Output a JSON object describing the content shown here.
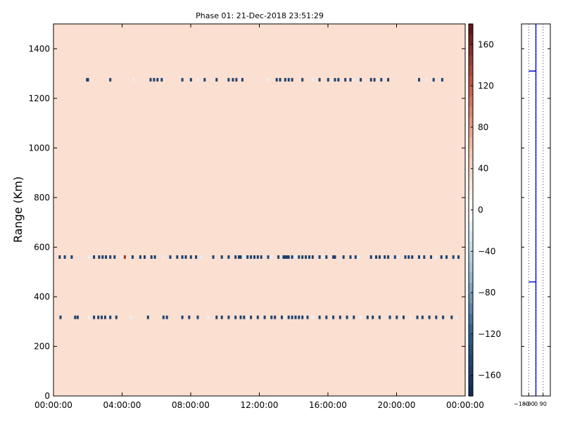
{
  "chart_data": [
    {
      "type": "heatmap",
      "title": "Phase 01: 21-Dec-2018 23:51:29",
      "xlabel": "",
      "ylabel": "Range (Km)",
      "xlim": [
        0,
        24
      ],
      "ylim": [
        0,
        1500
      ],
      "x_ticks": [
        0,
        4,
        8,
        12,
        16,
        20,
        24
      ],
      "x_tick_labels": [
        "00:00:00",
        "04:00:00",
        "08:00:00",
        "12:00:00",
        "16:00:00",
        "20:00:00",
        "00:00:00"
      ],
      "y_ticks": [
        0,
        200,
        400,
        600,
        800,
        1000,
        1200,
        1400
      ],
      "y_tick_labels": [
        "0",
        "200",
        "400",
        "600",
        "800",
        "1000",
        "1200",
        "1400"
      ],
      "background_value": 30,
      "bands": [
        {
          "range_km": 1275,
          "value": -150,
          "start_x_hours": [
            1.9,
            1.95,
            3.25,
            4.6,
            5.6,
            5.8,
            6.0,
            6.25,
            7.45,
            7.95,
            8.35,
            8.75,
            9.45,
            10.15,
            10.4,
            10.6,
            10.95,
            12.4,
            12.95,
            13.15,
            13.45,
            13.65,
            13.85,
            14.45,
            15.05,
            15.45,
            15.95,
            16.35,
            16.55,
            16.95,
            17.25,
            17.45,
            17.85,
            18.45,
            18.65,
            19.05,
            19.45,
            21.25,
            21.7,
            22.1,
            22.6
          ]
        },
        {
          "range_km": 560,
          "value": -150,
          "start_x_hours": [
            0.3,
            0.6,
            1.0,
            2.0,
            2.3,
            2.6,
            2.8,
            3.0,
            3.25,
            3.5,
            3.9,
            4.1,
            4.55,
            5.0,
            5.25,
            5.65,
            5.85,
            6.35,
            6.75,
            7.15,
            7.45,
            7.65,
            7.95,
            8.25,
            8.55,
            9.25,
            9.75,
            10.15,
            10.55,
            10.75,
            10.85,
            11.05,
            11.25,
            11.45,
            11.65,
            11.85,
            12.05,
            12.45,
            12.65,
            13.05,
            13.35,
            13.45,
            13.55,
            13.65,
            13.85,
            14.05,
            14.25,
            14.45,
            14.65,
            14.85,
            15.05,
            15.45,
            15.65,
            15.85,
            16.25,
            16.35,
            16.85,
            17.25,
            17.55,
            17.75,
            18.45,
            18.75,
            18.95,
            19.25,
            19.45,
            19.85,
            20.05,
            20.45,
            20.65,
            20.85,
            21.25,
            21.55,
            21.95,
            22.25,
            22.55,
            22.85,
            23.25,
            23.55
          ]
        },
        {
          "range_km": 317,
          "value": -150,
          "start_x_hours": [
            0.35,
            1.2,
            1.35,
            2.0,
            2.3,
            2.55,
            2.75,
            2.95,
            3.25,
            3.6,
            4.45,
            5.45,
            6.35,
            6.55,
            7.45,
            7.85,
            8.35,
            8.95,
            9.45,
            9.75,
            10.15,
            10.55,
            10.85,
            11.05,
            11.25,
            11.45,
            11.85,
            12.25,
            12.65,
            12.85,
            13.25,
            13.45,
            13.65,
            13.85,
            14.05,
            14.25,
            14.45,
            14.75,
            15.05,
            15.45,
            15.85,
            16.25,
            16.65,
            17.05,
            17.45,
            17.85,
            18.25,
            18.55,
            18.95,
            19.55,
            19.95,
            20.35,
            20.75,
            21.15,
            21.45,
            21.85,
            22.25,
            22.65,
            23.15,
            23.45
          ]
        }
      ],
      "highlight_cells": [
        {
          "x_hours": 4.1,
          "range_km": 560,
          "value": 140
        }
      ],
      "colorbar": {
        "vmin": -180,
        "vmax": 180,
        "ticks": [
          160,
          120,
          80,
          40,
          0,
          -40,
          -80,
          -120,
          -160
        ],
        "tick_labels": [
          "160",
          "120",
          "80",
          "40",
          "0",
          "−40",
          "−80",
          "−120",
          "−160"
        ],
        "stops": [
          {
            "value": -180,
            "color": "#0e2a52"
          },
          {
            "value": -120,
            "color": "#2b5c8d"
          },
          {
            "value": -60,
            "color": "#9cc3d9"
          },
          {
            "value": 0,
            "color": "#ffffff"
          },
          {
            "value": 60,
            "color": "#f5c3a9"
          },
          {
            "value": 120,
            "color": "#cc5a45"
          },
          {
            "value": 180,
            "color": "#5e0f14"
          }
        ]
      },
      "colors": {
        "background_cell": "#fbdfd1",
        "band_cell": "#2e5d90",
        "band_light_cell": "#e8f0f6"
      }
    },
    {
      "type": "line",
      "title": "",
      "xlabel": "",
      "ylabel": "",
      "xlim": [
        -180,
        180
      ],
      "ylim": [
        0,
        1500
      ],
      "x_ticks": [
        -180,
        -90,
        0,
        90
      ],
      "x_tick_labels": [
        "−180",
        "−90",
        "0",
        "90"
      ],
      "y_ticks": [
        0,
        200,
        400,
        600,
        800,
        1000,
        1200,
        1400
      ],
      "series": [
        {
          "x": [
            0,
            0,
            -90,
            0,
            0,
            -90,
            0,
            0
          ],
          "y": [
            0,
            460,
            460,
            460,
            1310,
            1310,
            1310,
            1500
          ],
          "color": "#0000cc"
        }
      ],
      "grid_x": true
    }
  ]
}
